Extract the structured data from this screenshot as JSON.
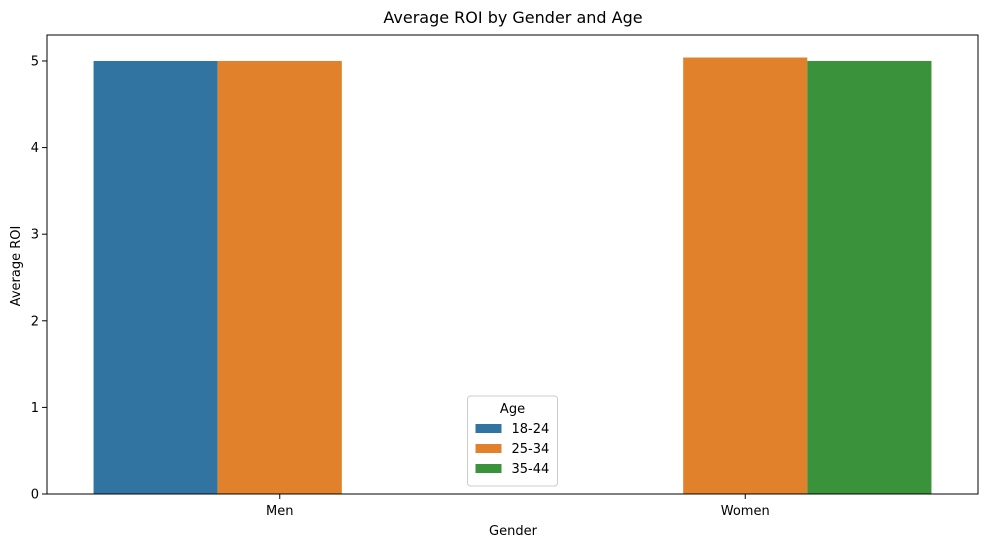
{
  "chart_data": {
    "type": "bar",
    "title": "Average ROI by Gender and Age",
    "xlabel": "Gender",
    "ylabel": "Average ROI",
    "categories": [
      "Men",
      "Women"
    ],
    "ylim": [
      0,
      5.3
    ],
    "yticks": [
      0,
      1,
      2,
      3,
      4,
      5
    ],
    "legend": {
      "title": "Age",
      "placement": "lower-center"
    },
    "series": [
      {
        "name": "18-24",
        "color": "#3274a1",
        "values": [
          5.0,
          null
        ]
      },
      {
        "name": "25-34",
        "color": "#e1812c",
        "values": [
          5.0,
          5.04
        ]
      },
      {
        "name": "35-44",
        "color": "#3a923a",
        "values": [
          null,
          5.0
        ]
      }
    ]
  }
}
